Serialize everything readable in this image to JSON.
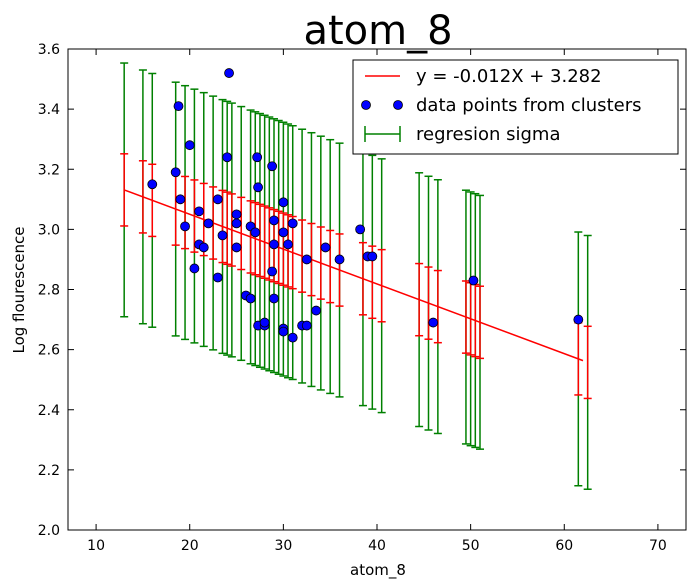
{
  "chart_data": {
    "type": "scatter",
    "title": "atom_8",
    "xlabel": "atom_8",
    "ylabel": "Log flourescence",
    "xlim": [
      7,
      73
    ],
    "ylim": [
      2.0,
      3.6
    ],
    "xticks": [
      10,
      20,
      30,
      40,
      50,
      60,
      70
    ],
    "yticks": [
      2.0,
      2.2,
      2.4,
      2.6,
      2.8,
      3.0,
      3.2,
      3.4,
      3.6
    ],
    "grid": false,
    "legend_position": "top-right",
    "regression": {
      "label": "y = -0.012X + 3.282",
      "slope": -0.01159,
      "intercept": 3.282,
      "x_range": [
        13,
        62
      ],
      "color": "#ff0000"
    },
    "regression_sigma": {
      "label": "regresion sigma",
      "color": "#008000",
      "half_width": 0.422
    },
    "inner_error_bars": {
      "color": "#ff0000",
      "half_width": 0.12
    },
    "error_bar_x": [
      13,
      15,
      16,
      18.5,
      19.5,
      20.5,
      21.5,
      22.5,
      23.5,
      24,
      24.5,
      25.5,
      26.5,
      27,
      27.5,
      28,
      28.5,
      29,
      29.5,
      30,
      30.5,
      31,
      32,
      33,
      34,
      35,
      36,
      38.5,
      39.5,
      40.5,
      44.5,
      45.5,
      46.5,
      49.5,
      50,
      50.5,
      51,
      61.5,
      62.5
    ],
    "scatter": {
      "label": "data points from clusters",
      "color": "#0000ff",
      "points": [
        [
          16,
          3.15
        ],
        [
          18.5,
          3.19
        ],
        [
          18.8,
          3.41
        ],
        [
          19,
          3.1
        ],
        [
          19.5,
          3.01
        ],
        [
          20,
          3.28
        ],
        [
          20.5,
          2.87
        ],
        [
          21,
          3.06
        ],
        [
          21,
          2.95
        ],
        [
          21.5,
          2.94
        ],
        [
          22,
          3.02
        ],
        [
          23,
          3.1
        ],
        [
          23,
          2.84
        ],
        [
          23.5,
          2.98
        ],
        [
          24,
          3.24
        ],
        [
          24.2,
          3.52
        ],
        [
          25,
          3.05
        ],
        [
          25,
          3.02
        ],
        [
          25,
          2.94
        ],
        [
          26,
          2.78
        ],
        [
          26.5,
          2.77
        ],
        [
          26.5,
          3.01
        ],
        [
          27,
          2.99
        ],
        [
          27.2,
          3.24
        ],
        [
          27.3,
          3.14
        ],
        [
          27.3,
          2.68
        ],
        [
          28,
          2.68
        ],
        [
          28,
          2.69
        ],
        [
          28.8,
          3.21
        ],
        [
          28.8,
          2.86
        ],
        [
          29,
          3.03
        ],
        [
          29,
          2.95
        ],
        [
          29,
          2.77
        ],
        [
          30,
          3.09
        ],
        [
          30,
          2.99
        ],
        [
          30,
          2.67
        ],
        [
          30,
          2.66
        ],
        [
          30.5,
          2.95
        ],
        [
          31,
          3.02
        ],
        [
          31,
          2.64
        ],
        [
          32,
          2.68
        ],
        [
          32.5,
          2.9
        ],
        [
          32.5,
          2.68
        ],
        [
          33.5,
          2.73
        ],
        [
          34.5,
          2.94
        ],
        [
          36,
          2.9
        ],
        [
          38.2,
          3.0
        ],
        [
          39,
          2.91
        ],
        [
          39.5,
          2.91
        ],
        [
          46,
          2.69
        ],
        [
          50.3,
          2.83
        ],
        [
          61.5,
          2.7
        ]
      ]
    }
  }
}
